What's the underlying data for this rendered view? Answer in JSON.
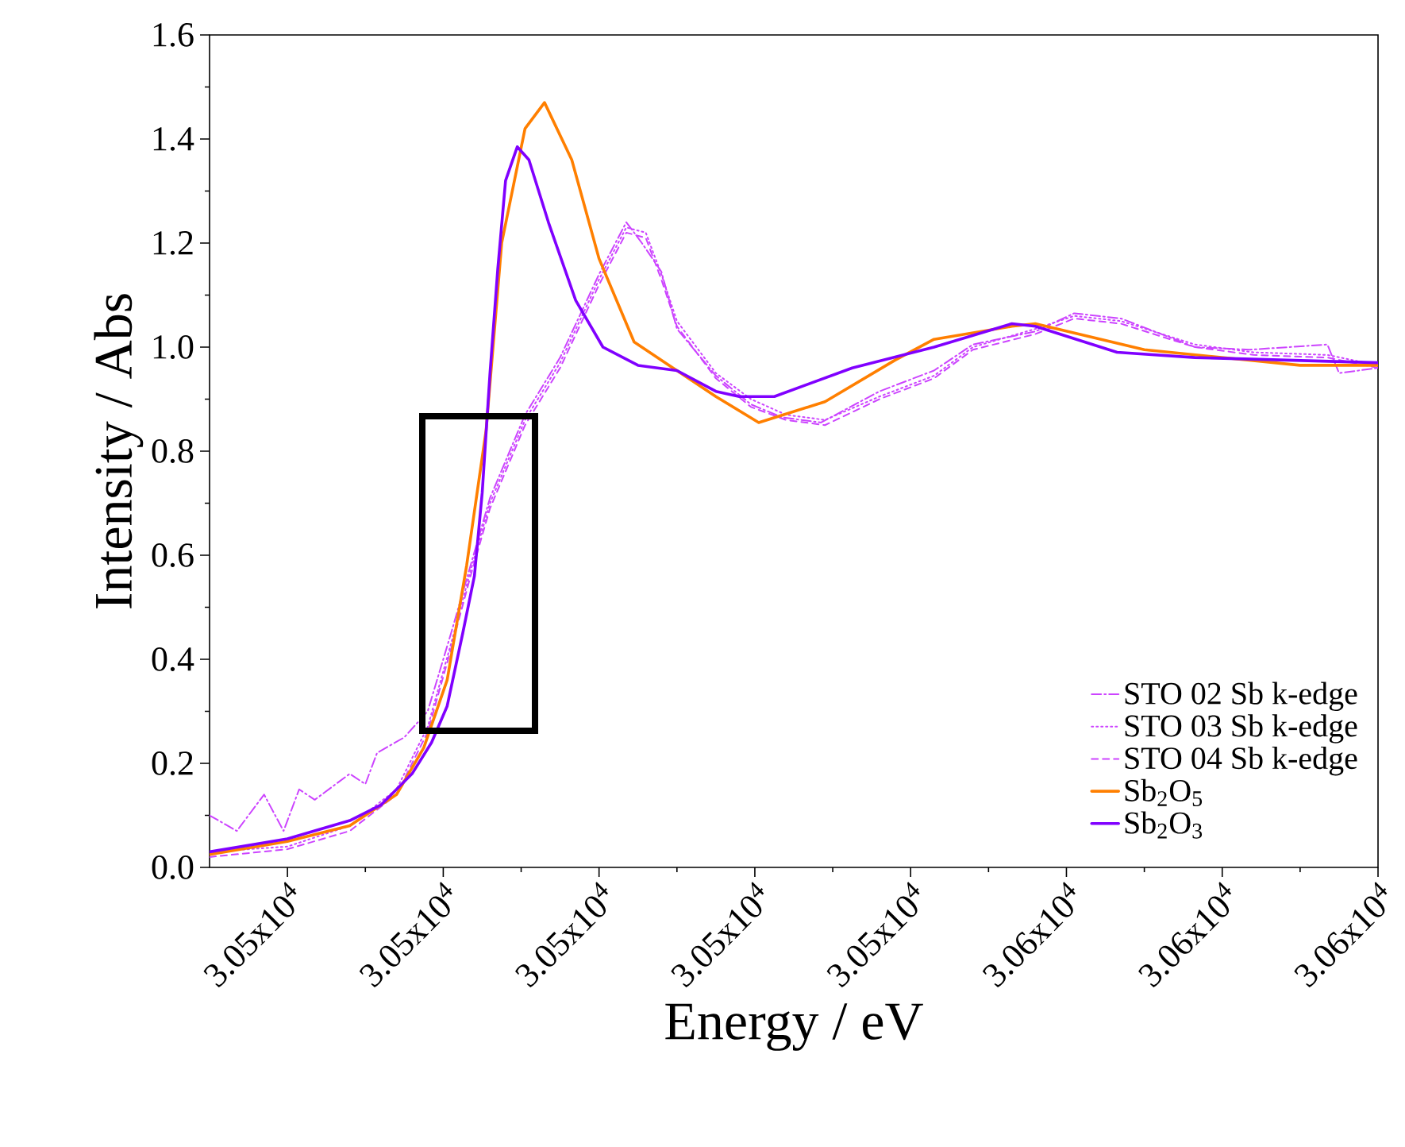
{
  "chart_data": {
    "type": "line",
    "xlabel": "Energy / eV",
    "ylabel": "Intensity / Abs",
    "xlim": [
      30450,
      30600
    ],
    "ylim": [
      0,
      1.6
    ],
    "xticks": [
      {
        "value": 30460,
        "label": "3.05x10$^{4}$"
      },
      {
        "value": 30480,
        "label": "3.05x10$^{4}$"
      },
      {
        "value": 30500,
        "label": "3.05x10$^{4}$"
      },
      {
        "value": 30520,
        "label": "3.05x10$^{4}$"
      },
      {
        "value": 30540,
        "label": "3.05x10$^{4}$"
      },
      {
        "value": 30560,
        "label": "3.06x10$^{4}$"
      },
      {
        "value": 30580,
        "label": "3.06x10$^{4}$"
      },
      {
        "value": 30600,
        "label": "3.06x10$^{4}$"
      }
    ],
    "yticks": [
      {
        "value": 0,
        "label": "0.0"
      },
      {
        "value": 0.2,
        "label": "0.2"
      },
      {
        "value": 0.4,
        "label": "0.4"
      },
      {
        "value": 0.6,
        "label": "0.6"
      },
      {
        "value": 0.8,
        "label": "0.8"
      },
      {
        "value": 1.0,
        "label": "1.0"
      },
      {
        "value": 1.2,
        "label": "1.2"
      },
      {
        "value": 1.4,
        "label": "1.4"
      },
      {
        "value": 1.6,
        "label": "1.6"
      }
    ],
    "grid": false,
    "legend": "bottom right",
    "marker": "none",
    "series": [
      {
        "name": "STO 02 Sb k-edge",
        "color": "#cc44ff",
        "line_style": "dashdot",
        "x": [
          30450,
          30453.5,
          30457,
          30459.5,
          30461.5,
          30463.5,
          30468,
          30470,
          30471.5,
          30475,
          30478,
          30481,
          30483.5,
          30486,
          30490.5,
          30495,
          30500,
          30503.5,
          30505.5,
          30508,
          30510,
          30515,
          30519.5,
          30523.5,
          30528.5,
          30536,
          30543,
          30548,
          30556,
          30561,
          30567,
          30576.5,
          30583.5,
          30593.5,
          30595,
          30600
        ],
        "values": [
          0.1,
          0.07,
          0.14,
          0.07,
          0.15,
          0.13,
          0.18,
          0.16,
          0.22,
          0.25,
          0.3,
          0.45,
          0.58,
          0.71,
          0.87,
          0.98,
          1.14,
          1.24,
          1.2,
          1.145,
          1.035,
          0.945,
          0.89,
          0.865,
          0.855,
          0.915,
          0.955,
          1.005,
          1.03,
          1.065,
          1.055,
          1.0,
          0.995,
          1.005,
          0.95,
          0.96
        ]
      },
      {
        "name": "STO 03 Sb k-edge",
        "color": "#cc44ff",
        "line_style": "dotted",
        "x": [
          30450,
          30460,
          30468,
          30474,
          30478,
          30481,
          30483.5,
          30486,
          30490.5,
          30495,
          30500,
          30503.5,
          30506,
          30508,
          30510,
          30515,
          30519.5,
          30524,
          30529,
          30536,
          30543,
          30548,
          30556,
          30561,
          30567,
          30576.5,
          30584,
          30593.5,
          30600
        ],
        "values": [
          0.03,
          0.04,
          0.08,
          0.15,
          0.27,
          0.43,
          0.57,
          0.7,
          0.86,
          0.97,
          1.13,
          1.23,
          1.22,
          1.14,
          1.05,
          0.95,
          0.9,
          0.87,
          0.86,
          0.905,
          0.945,
          1.0,
          1.035,
          1.06,
          1.05,
          1.005,
          0.99,
          0.985,
          0.965
        ]
      },
      {
        "name": "STO 04 Sb k-edge",
        "color": "#cc44ff",
        "line_style": "dashed",
        "x": [
          30450,
          30460,
          30468,
          30474,
          30478,
          30481,
          30483.5,
          30486,
          30490.5,
          30495,
          30500,
          30503.5,
          30506,
          30508,
          30510,
          30515,
          30519.5,
          30524,
          30529,
          30536,
          30543,
          30548,
          30556,
          30561,
          30567,
          30576.5,
          30584,
          30593.5,
          30600
        ],
        "values": [
          0.02,
          0.035,
          0.07,
          0.14,
          0.26,
          0.42,
          0.56,
          0.69,
          0.85,
          0.96,
          1.12,
          1.22,
          1.21,
          1.13,
          1.04,
          0.94,
          0.885,
          0.86,
          0.85,
          0.9,
          0.94,
          0.995,
          1.025,
          1.055,
          1.045,
          1.0,
          0.985,
          0.98,
          0.96
        ]
      },
      {
        "name": "Sb$_{2}$O$_{5}$",
        "color": "#ff7f00",
        "line_style": "solid",
        "x": [
          30450,
          30460,
          30468,
          30474,
          30477.5,
          30480.5,
          30483,
          30485.5,
          30487.5,
          30490.5,
          30493,
          30496.5,
          30500,
          30504.5,
          30508.5,
          30515,
          30520.5,
          30529,
          30538,
          30543,
          30553,
          30556,
          30570,
          30590,
          30600
        ],
        "values": [
          0.025,
          0.05,
          0.08,
          0.14,
          0.23,
          0.36,
          0.58,
          0.84,
          1.2,
          1.42,
          1.47,
          1.36,
          1.17,
          1.01,
          0.97,
          0.905,
          0.855,
          0.895,
          0.975,
          1.015,
          1.04,
          1.045,
          0.995,
          0.965,
          0.965
        ]
      },
      {
        "name": "Sb$_{2}$O$_{3}$",
        "color": "#8000ff",
        "line_style": "solid",
        "x": [
          30450,
          30460,
          30468,
          30472,
          30476,
          30478.5,
          30480.5,
          30482.5,
          30484,
          30485,
          30486,
          30487,
          30488,
          30489.5,
          30491,
          30493.5,
          30497,
          30500.5,
          30505,
          30510,
          30515,
          30518,
          30522.5,
          30532.5,
          30543,
          30553,
          30556,
          30566.5,
          30576.5,
          30600
        ],
        "values": [
          0.03,
          0.055,
          0.09,
          0.12,
          0.18,
          0.24,
          0.31,
          0.45,
          0.56,
          0.72,
          0.95,
          1.15,
          1.32,
          1.385,
          1.36,
          1.24,
          1.09,
          1.0,
          0.965,
          0.955,
          0.915,
          0.905,
          0.905,
          0.96,
          1.0,
          1.045,
          1.04,
          0.99,
          0.98,
          0.97
        ]
      }
    ]
  }
}
